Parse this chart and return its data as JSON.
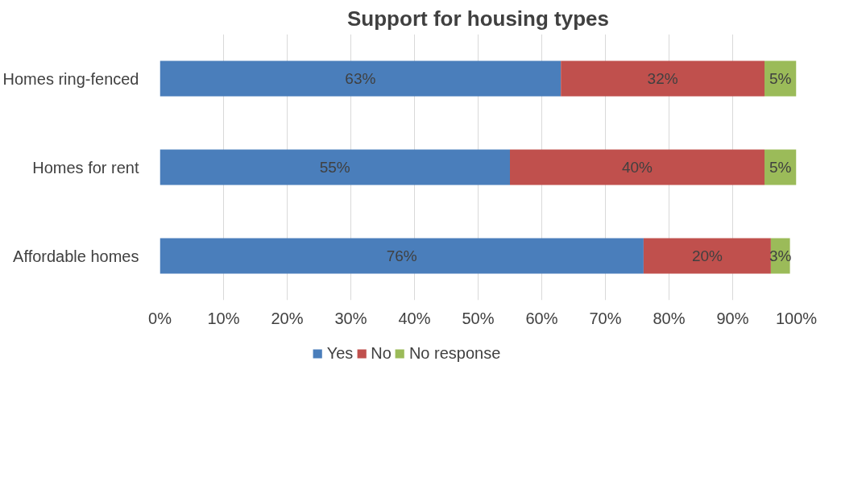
{
  "chart_data": {
    "type": "bar",
    "orientation": "horizontal",
    "stacked": true,
    "title": "Support for housing types",
    "categories": [
      "Homes ring-fenced",
      "Homes for rent",
      "Affordable homes"
    ],
    "series": [
      {
        "name": "Yes",
        "color": "#4a7ebb",
        "values": [
          63,
          55,
          76
        ],
        "value_labels": [
          "63%",
          "55%",
          "76%"
        ]
      },
      {
        "name": "No",
        "color": "#c0504d",
        "values": [
          32,
          40,
          20
        ],
        "value_labels": [
          "32%",
          "40%",
          "20%"
        ]
      },
      {
        "name": "No response",
        "color": "#9bbb59",
        "values": [
          5,
          5,
          3
        ],
        "value_labels": [
          "5%",
          "5%",
          "3%"
        ]
      }
    ],
    "xlim": [
      0,
      100
    ],
    "xticks": [
      {
        "value": 0,
        "label": "0%"
      },
      {
        "value": 10,
        "label": "10%"
      },
      {
        "value": 20,
        "label": "20%"
      },
      {
        "value": 30,
        "label": "30%"
      },
      {
        "value": 40,
        "label": "40%"
      },
      {
        "value": 50,
        "label": "50%"
      },
      {
        "value": 60,
        "label": "60%"
      },
      {
        "value": 70,
        "label": "70%"
      },
      {
        "value": 80,
        "label": "80%"
      },
      {
        "value": 90,
        "label": "90%"
      },
      {
        "value": 100,
        "label": "100%"
      }
    ],
    "data_labels": true,
    "grid": "x",
    "legend": "bottom"
  }
}
